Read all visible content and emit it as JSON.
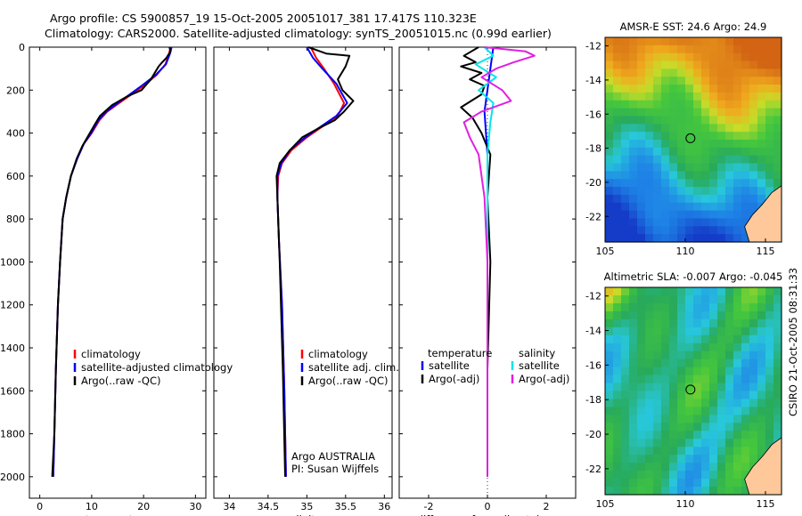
{
  "header": {
    "line1": "Argo profile: CS 5900857_19 15-Oct-2005 20051017_381 17.417S 110.323E",
    "line2": "Climatology: CARS2000. Satellite-adjusted climatology: synTS_20051015.nc (0.99d earlier)"
  },
  "colors": {
    "climatology": "#ff0000",
    "satellite": "#0000ff",
    "argo": "#000000",
    "cyan": "#00e5ee",
    "magenta": "#e020e0"
  },
  "chart_data": [
    {
      "type": "line",
      "xlabel": "temperature",
      "ylabel": "",
      "xlim": [
        -2,
        32
      ],
      "ylim": [
        2100,
        0
      ],
      "xticks": [
        0,
        10,
        20,
        30
      ],
      "yticks": [
        0,
        200,
        400,
        600,
        800,
        1000,
        1200,
        1400,
        1600,
        1800,
        2000
      ],
      "legend": {
        "position": "lower-right",
        "entries": [
          "climatology",
          "satellite-adjusted climatology",
          "Argo(..raw -QC)"
        ]
      },
      "series": [
        {
          "name": "climatology",
          "color": "red",
          "x": [
            25.2,
            24.9,
            24.2,
            22.5,
            20.0,
            16.5,
            13.0,
            11.5,
            10.0,
            8.5,
            7.2,
            6.0,
            5.1,
            4.4,
            3.9,
            3.5,
            3.1,
            2.8,
            2.6
          ],
          "y": [
            0,
            30,
            80,
            130,
            180,
            240,
            300,
            340,
            400,
            450,
            520,
            600,
            700,
            800,
            1000,
            1200,
            1500,
            1800,
            2000
          ]
        },
        {
          "name": "satellite-adjusted climatology",
          "color": "blue",
          "x": [
            25.4,
            25.1,
            24.3,
            22.3,
            19.6,
            16.2,
            12.8,
            11.3,
            9.9,
            8.5,
            7.2,
            6.0,
            5.1,
            4.4,
            3.9,
            3.5,
            3.1,
            2.8,
            2.6
          ],
          "y": [
            0,
            30,
            80,
            130,
            180,
            240,
            300,
            340,
            400,
            450,
            520,
            600,
            700,
            800,
            1000,
            1200,
            1500,
            1800,
            2000
          ]
        },
        {
          "name": "Argo(..raw -QC)",
          "color": "black",
          "x": [
            25.0,
            25.2,
            24.4,
            23.6,
            22.9,
            21.4,
            19.6,
            16.8,
            13.9,
            11.6,
            10.6,
            9.4,
            8.2,
            7.1,
            6.0,
            5.1,
            4.4,
            3.9,
            3.5,
            3.1,
            2.8,
            2.4
          ],
          "y": [
            0,
            20,
            50,
            70,
            90,
            150,
            200,
            230,
            270,
            320,
            360,
            410,
            460,
            520,
            600,
            700,
            800,
            1000,
            1200,
            1500,
            1800,
            2000
          ]
        }
      ]
    },
    {
      "type": "line",
      "xlabel": "salinity",
      "ylabel": "",
      "xlim": [
        33.8,
        36.1
      ],
      "ylim": [
        2100,
        0
      ],
      "xticks": [
        34,
        34.5,
        35,
        35.5,
        36
      ],
      "legend": {
        "position": "lower-right",
        "entries": [
          "climatology",
          "satellite adj. clim.",
          "Argo(..raw -QC)"
        ]
      },
      "annotations": [
        "Argo AUSTRALIA",
        "PI: Susan Wijffels"
      ],
      "series": [
        {
          "name": "climatology",
          "color": "red",
          "x": [
            35.05,
            35.12,
            35.22,
            35.35,
            35.48,
            35.4,
            35.2,
            35.0,
            34.8,
            34.68,
            34.63,
            34.62,
            34.64,
            34.68,
            34.71,
            34.73
          ],
          "y": [
            0,
            50,
            100,
            170,
            260,
            320,
            370,
            420,
            480,
            540,
            600,
            700,
            900,
            1200,
            1600,
            2000
          ]
        },
        {
          "name": "satellite adj. clim.",
          "color": "blue",
          "x": [
            35.0,
            35.08,
            35.2,
            35.38,
            35.52,
            35.38,
            35.18,
            34.98,
            34.78,
            34.67,
            34.62,
            34.62,
            34.64,
            34.68,
            34.71,
            34.73
          ],
          "y": [
            0,
            50,
            100,
            170,
            260,
            320,
            370,
            420,
            480,
            540,
            600,
            700,
            900,
            1200,
            1600,
            2000
          ]
        },
        {
          "name": "Argo(..raw -QC)",
          "color": "black",
          "x": [
            35.02,
            35.25,
            35.55,
            35.5,
            35.4,
            35.46,
            35.6,
            35.48,
            35.36,
            35.14,
            34.94,
            34.78,
            34.65,
            34.61,
            34.62,
            34.65,
            34.69,
            34.72
          ],
          "y": [
            0,
            30,
            40,
            90,
            150,
            200,
            250,
            300,
            340,
            380,
            420,
            480,
            540,
            600,
            700,
            1000,
            1500,
            2000
          ]
        }
      ]
    },
    {
      "type": "line",
      "xlabel": "difference from climatology",
      "ylabel": "",
      "xlim": [
        -3,
        3
      ],
      "ylim": [
        2100,
        0
      ],
      "xticks": [
        -2,
        0,
        2
      ],
      "legend": {
        "position": "lower-center",
        "temperature_header": "temperature",
        "salinity_header": "salinity",
        "entries": [
          "satellite",
          "Argo(-adj)",
          "satellite",
          "Argo(-adj)"
        ]
      },
      "series": [
        {
          "name": "temperature satellite",
          "color": "blue",
          "x": [
            0.2,
            0.1,
            0.0,
            -0.1,
            0.0,
            0.0,
            0.0
          ],
          "y": [
            0,
            100,
            200,
            300,
            500,
            1000,
            2000
          ]
        },
        {
          "name": "temperature Argo(-adj)",
          "color": "black",
          "x": [
            -0.3,
            -0.8,
            -0.4,
            -0.9,
            -0.2,
            -0.6,
            -0.1,
            -0.2,
            -0.9,
            -0.5,
            -0.2,
            0.1,
            0.0,
            0.1,
            0.0,
            0.0
          ],
          "y": [
            0,
            40,
            70,
            90,
            120,
            150,
            180,
            220,
            280,
            330,
            400,
            500,
            700,
            1000,
            1500,
            2000
          ]
        },
        {
          "name": "salinity satellite",
          "color": "cyan",
          "x": [
            -0.1,
            0.2,
            -0.4,
            0.3,
            -0.3,
            0.2,
            0.1,
            0.0,
            0.0,
            0.0
          ],
          "y": [
            0,
            40,
            80,
            140,
            200,
            260,
            350,
            500,
            1000,
            2000
          ]
        },
        {
          "name": "salinity Argo(-adj)",
          "color": "magenta",
          "x": [
            -0.1,
            1.3,
            1.6,
            0.9,
            0.3,
            -0.2,
            0.5,
            0.8,
            -0.2,
            -0.8,
            -0.6,
            -0.3,
            -0.1,
            0.0,
            0.0
          ],
          "y": [
            0,
            20,
            40,
            70,
            100,
            140,
            200,
            250,
            300,
            350,
            420,
            500,
            700,
            1000,
            2000
          ]
        }
      ]
    },
    {
      "type": "heatmap",
      "title": "AMSR-E SST: 24.6 Argo: 24.9",
      "xlim": [
        105,
        116
      ],
      "ylim": [
        -23.5,
        -11.5
      ],
      "xticks": [
        105,
        110,
        115
      ],
      "yticks": [
        -12,
        -14,
        -16,
        -18,
        -20,
        -22
      ],
      "marker": {
        "lon": 110.323,
        "lat": -17.417
      }
    },
    {
      "type": "heatmap",
      "title": "Altimetric SLA: -0.007 Argo: -0.045",
      "xlim": [
        105,
        116
      ],
      "ylim": [
        -23.5,
        -11.5
      ],
      "xticks": [
        105,
        110,
        115
      ],
      "yticks": [
        -12,
        -14,
        -16,
        -18,
        -20,
        -22
      ],
      "marker": {
        "lon": 110.323,
        "lat": -17.417
      }
    }
  ],
  "footer": {
    "stamp": "CSIRO 21-Oct-2005 08:31:33"
  }
}
